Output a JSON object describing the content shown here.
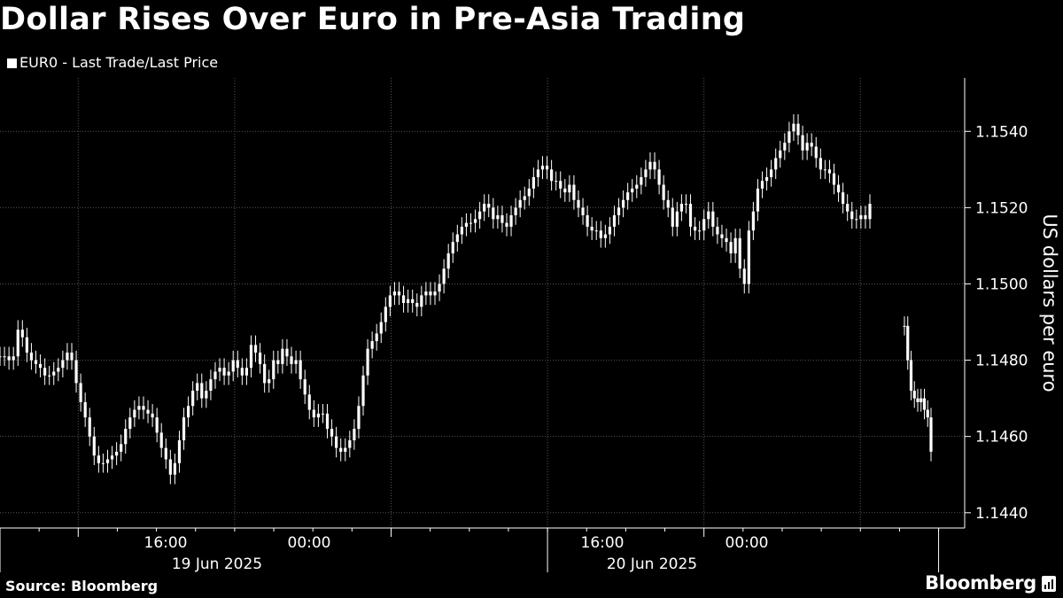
{
  "title": "Dollar Rises Over Euro in Pre-Asia Trading",
  "legend": "EUR0 - Last Trade/Last Price",
  "source": "Source: Bloomberg",
  "brand": "Bloomberg",
  "colors": {
    "background": "#000000",
    "series": "#ffffff",
    "grid": "#555555"
  },
  "chart_data": {
    "type": "line",
    "style": "candlestick",
    "ylabel": "US dollars per euro",
    "ylim": [
      1.1436,
      1.1554
    ],
    "y_ticks": [
      "1.1440",
      "1.1460",
      "1.1480",
      "1.1500",
      "1.1520",
      "1.1540"
    ],
    "x_tick_labels": [
      "16:00",
      "00:00",
      "16:00",
      "00:00"
    ],
    "x_date_labels": [
      "19 Jun 2025",
      "20 Jun 2025"
    ],
    "grid": true,
    "legend_position": "top-left",
    "series": [
      {
        "name": "EUR0 - Last Trade/Last Price",
        "segments": [
          {
            "x_start": "19 Jun 2025 06:00",
            "x_end": "20 Jun 2025 03:00",
            "interval_minutes": 6,
            "values": [
              1.1481,
              1.1481,
              1.148,
              1.1481,
              1.1488,
              1.1486,
              1.1482,
              1.148,
              1.1479,
              1.1478,
              1.1476,
              1.1476,
              1.1477,
              1.1478,
              1.148,
              1.1482,
              1.148,
              1.1474,
              1.1469,
              1.1465,
              1.146,
              1.1455,
              1.1453,
              1.1453,
              1.1454,
              1.1455,
              1.1456,
              1.1458,
              1.1462,
              1.1465,
              1.1467,
              1.1468,
              1.1467,
              1.1466,
              1.1465,
              1.1461,
              1.1457,
              1.1454,
              1.145,
              1.1453,
              1.1459,
              1.1465,
              1.1468,
              1.1472,
              1.1474,
              1.147,
              1.1472,
              1.1475,
              1.1477,
              1.1478,
              1.1476,
              1.1477,
              1.148,
              1.1478,
              1.1476,
              1.1478,
              1.1484,
              1.1482,
              1.1479,
              1.1474,
              1.1475,
              1.148,
              1.1479,
              1.1483,
              1.1481,
              1.1479,
              1.148,
              1.1475,
              1.1471,
              1.1467,
              1.1465,
              1.1466,
              1.1466,
              1.1462,
              1.146,
              1.1457,
              1.1456,
              1.1457,
              1.1459,
              1.1462,
              1.1468,
              1.1476,
              1.1483,
              1.1485,
              1.1487,
              1.149,
              1.1494,
              1.1497,
              1.1498,
              1.1497,
              1.1495,
              1.1496,
              1.1495,
              1.1494,
              1.1497,
              1.1498,
              1.1497,
              1.1498,
              1.15,
              1.1504,
              1.1508,
              1.1511,
              1.1513,
              1.1515,
              1.1516,
              1.1516,
              1.1517,
              1.1519,
              1.1521,
              1.152,
              1.1517,
              1.1518,
              1.1516,
              1.1515,
              1.1518,
              1.152,
              1.1522,
              1.1523,
              1.1525,
              1.1528,
              1.153,
              1.1531,
              1.153,
              1.1527,
              1.1527,
              1.1525,
              1.1524,
              1.1526,
              1.1522,
              1.152,
              1.1518,
              1.1515,
              1.1514,
              1.1514,
              1.1512,
              1.1513,
              1.1515,
              1.1518,
              1.152,
              1.1522,
              1.1524,
              1.1525,
              1.1526,
              1.1528,
              1.153,
              1.1532,
              1.153,
              1.1526,
              1.1522,
              1.152,
              1.1515,
              1.1519,
              1.1521,
              1.1521,
              1.1515,
              1.1514,
              1.1514,
              1.1517,
              1.1519,
              1.1515,
              1.1513,
              1.1512,
              1.1511,
              1.1508,
              1.1512,
              1.1504,
              1.15,
              1.1514,
              1.1519,
              1.1525,
              1.1527,
              1.1528,
              1.153,
              1.1533,
              1.1535,
              1.1537,
              1.154,
              1.1542,
              1.1539,
              1.1535,
              1.1537,
              1.1536,
              1.1533,
              1.153,
              1.153,
              1.1529,
              1.1526,
              1.1524,
              1.1521,
              1.1519,
              1.1517,
              1.1517,
              1.1518,
              1.1517,
              1.1521
            ]
          },
          {
            "x_start": "20 Jun 2025 04:00",
            "x_end": "20 Jun 2025 05:00",
            "interval_minutes": 6,
            "values": [
              1.1489,
              1.148,
              1.1472,
              1.147,
              1.1469,
              1.147,
              1.1467,
              1.1465,
              1.1456
            ]
          }
        ]
      }
    ]
  }
}
